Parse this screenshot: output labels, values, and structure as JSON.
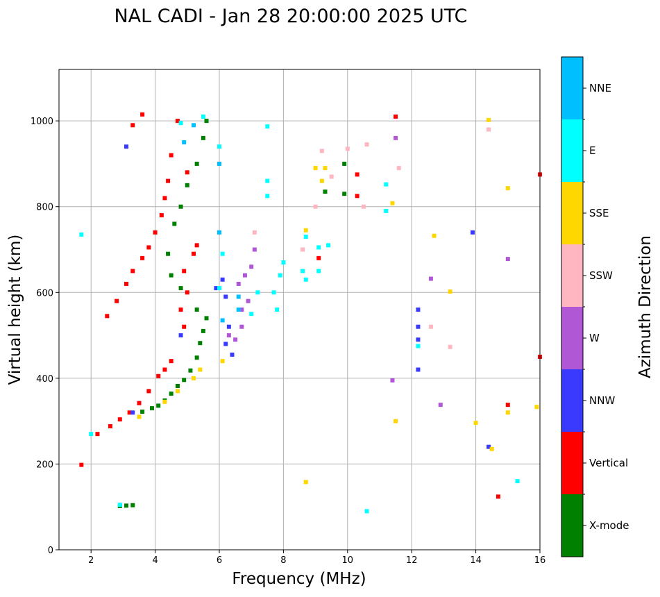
{
  "chart_data": {
    "type": "scatter",
    "title": "NAL CADI - Jan 28 20:00:00 2025 UTC",
    "xlabel": "Frequency (MHz)",
    "ylabel": "Virtual height (km)",
    "xlim": [
      1,
      16
    ],
    "ylim": [
      0,
      1120
    ],
    "xticks": [
      2,
      4,
      6,
      8,
      10,
      12,
      14,
      16
    ],
    "yticks": [
      0,
      200,
      400,
      600,
      800,
      1000
    ],
    "grid": true,
    "colorbar": {
      "label": "Azimuth Direction",
      "categories": [
        {
          "name": "X-mode",
          "color": "#008000"
        },
        {
          "name": "Vertical",
          "color": "#ff0000"
        },
        {
          "name": "NNW",
          "color": "#3a3aff"
        },
        {
          "name": "W",
          "color": "#b057d6"
        },
        {
          "name": "SSW",
          "color": "#ffb6c1"
        },
        {
          "name": "SSE",
          "color": "#ffd700"
        },
        {
          "name": "E",
          "color": "#00ffff"
        },
        {
          "name": "NNE",
          "color": "#00bfff"
        }
      ]
    },
    "series": [
      {
        "name": "X-mode",
        "points": [
          [
            2.9,
            102
          ],
          [
            3.1,
            103
          ],
          [
            3.3,
            104
          ],
          [
            3.6,
            322
          ],
          [
            3.9,
            330
          ],
          [
            4.1,
            336
          ],
          [
            4.3,
            348
          ],
          [
            4.5,
            364
          ],
          [
            4.7,
            382
          ],
          [
            4.9,
            396
          ],
          [
            5.1,
            418
          ],
          [
            5.3,
            448
          ],
          [
            5.4,
            482
          ],
          [
            5.5,
            510
          ],
          [
            5.6,
            540
          ],
          [
            5.3,
            560
          ],
          [
            4.8,
            610
          ],
          [
            4.5,
            640
          ],
          [
            4.4,
            690
          ],
          [
            4.6,
            760
          ],
          [
            4.8,
            800
          ],
          [
            5.0,
            850
          ],
          [
            5.3,
            900
          ],
          [
            5.5,
            960
          ],
          [
            5.6,
            1000
          ],
          [
            9.9,
            830
          ],
          [
            9.9,
            900
          ],
          [
            9.3,
            835
          ]
        ]
      },
      {
        "name": "Vertical",
        "points": [
          [
            1.7,
            198
          ],
          [
            2.2,
            270
          ],
          [
            2.6,
            288
          ],
          [
            2.9,
            304
          ],
          [
            3.2,
            320
          ],
          [
            3.5,
            342
          ],
          [
            3.8,
            370
          ],
          [
            4.1,
            405
          ],
          [
            4.3,
            420
          ],
          [
            4.5,
            440
          ],
          [
            4.9,
            520
          ],
          [
            4.8,
            560
          ],
          [
            5.0,
            600
          ],
          [
            4.9,
            650
          ],
          [
            5.2,
            690
          ],
          [
            5.3,
            710
          ],
          [
            2.5,
            545
          ],
          [
            2.8,
            580
          ],
          [
            3.1,
            620
          ],
          [
            3.3,
            650
          ],
          [
            3.6,
            680
          ],
          [
            3.8,
            705
          ],
          [
            4.0,
            740
          ],
          [
            4.2,
            780
          ],
          [
            4.3,
            820
          ],
          [
            4.4,
            860
          ],
          [
            4.5,
            920
          ],
          [
            4.7,
            1000
          ],
          [
            3.6,
            1015
          ],
          [
            3.3,
            990
          ],
          [
            5.0,
            880
          ],
          [
            9.1,
            680
          ],
          [
            10.3,
            875
          ],
          [
            10.3,
            825
          ],
          [
            11.5,
            1010
          ],
          [
            14.7,
            124
          ],
          [
            15.0,
            338
          ],
          [
            16.0,
            875
          ],
          [
            16.0,
            450
          ]
        ]
      },
      {
        "name": "NNW",
        "points": [
          [
            6.2,
            480
          ],
          [
            6.3,
            520
          ],
          [
            6.4,
            455
          ],
          [
            6.2,
            590
          ],
          [
            6.1,
            630
          ],
          [
            4.8,
            500
          ],
          [
            12.2,
            560
          ],
          [
            12.2,
            520
          ],
          [
            12.2,
            490
          ],
          [
            12.2,
            420
          ],
          [
            13.9,
            740
          ],
          [
            14.4,
            240
          ],
          [
            3.3,
            320
          ],
          [
            3.1,
            940
          ],
          [
            5.9,
            610
          ]
        ]
      },
      {
        "name": "W",
        "points": [
          [
            6.3,
            500
          ],
          [
            6.5,
            490
          ],
          [
            6.7,
            520
          ],
          [
            6.7,
            560
          ],
          [
            6.6,
            620
          ],
          [
            6.8,
            640
          ],
          [
            7.0,
            660
          ],
          [
            7.1,
            700
          ],
          [
            6.9,
            580
          ],
          [
            12.6,
            632
          ],
          [
            12.9,
            338
          ],
          [
            15.0,
            678
          ],
          [
            11.5,
            960
          ],
          [
            11.4,
            395
          ]
        ]
      },
      {
        "name": "SSW",
        "points": [
          [
            9.2,
            930
          ],
          [
            9.5,
            870
          ],
          [
            10.0,
            935
          ],
          [
            10.6,
            945
          ],
          [
            10.5,
            800
          ],
          [
            12.6,
            520
          ],
          [
            13.2,
            473
          ],
          [
            14.4,
            980
          ],
          [
            11.6,
            890
          ],
          [
            7.1,
            740
          ],
          [
            8.6,
            700
          ],
          [
            9.0,
            800
          ]
        ]
      },
      {
        "name": "SSE",
        "points": [
          [
            3.5,
            310
          ],
          [
            4.3,
            345
          ],
          [
            4.7,
            370
          ],
          [
            5.2,
            400
          ],
          [
            5.4,
            420
          ],
          [
            6.1,
            440
          ],
          [
            9.0,
            890
          ],
          [
            9.3,
            890
          ],
          [
            9.2,
            860
          ],
          [
            8.7,
            745
          ],
          [
            8.7,
            158
          ],
          [
            11.5,
            300
          ],
          [
            12.7,
            732
          ],
          [
            13.2,
            602
          ],
          [
            14.0,
            296
          ],
          [
            14.4,
            1002
          ],
          [
            15.0,
            843
          ],
          [
            15.0,
            320
          ],
          [
            15.9,
            333
          ],
          [
            14.5,
            235
          ],
          [
            11.4,
            808
          ]
        ]
      },
      {
        "name": "E",
        "points": [
          [
            6.0,
            610
          ],
          [
            6.1,
            690
          ],
          [
            7.0,
            550
          ],
          [
            7.2,
            600
          ],
          [
            7.7,
            600
          ],
          [
            7.8,
            560
          ],
          [
            7.9,
            640
          ],
          [
            8.0,
            670
          ],
          [
            8.6,
            650
          ],
          [
            8.7,
            630
          ],
          [
            8.7,
            730
          ],
          [
            9.1,
            650
          ],
          [
            9.1,
            705
          ],
          [
            9.4,
            710
          ],
          [
            7.5,
            860
          ],
          [
            7.5,
            987
          ],
          [
            7.5,
            825
          ],
          [
            10.6,
            90
          ],
          [
            11.2,
            852
          ],
          [
            11.2,
            790
          ],
          [
            12.2,
            475
          ],
          [
            15.3,
            160
          ],
          [
            6.0,
            940
          ],
          [
            5.5,
            1010
          ],
          [
            4.8,
            995
          ],
          [
            1.7,
            735
          ],
          [
            2.0,
            270
          ],
          [
            2.9,
            105
          ]
        ]
      },
      {
        "name": "NNE",
        "points": [
          [
            6.6,
            590
          ],
          [
            6.6,
            560
          ],
          [
            6.0,
            900
          ],
          [
            6.0,
            740
          ],
          [
            4.9,
            950
          ],
          [
            6.1,
            535
          ],
          [
            5.2,
            990
          ]
        ]
      }
    ]
  }
}
